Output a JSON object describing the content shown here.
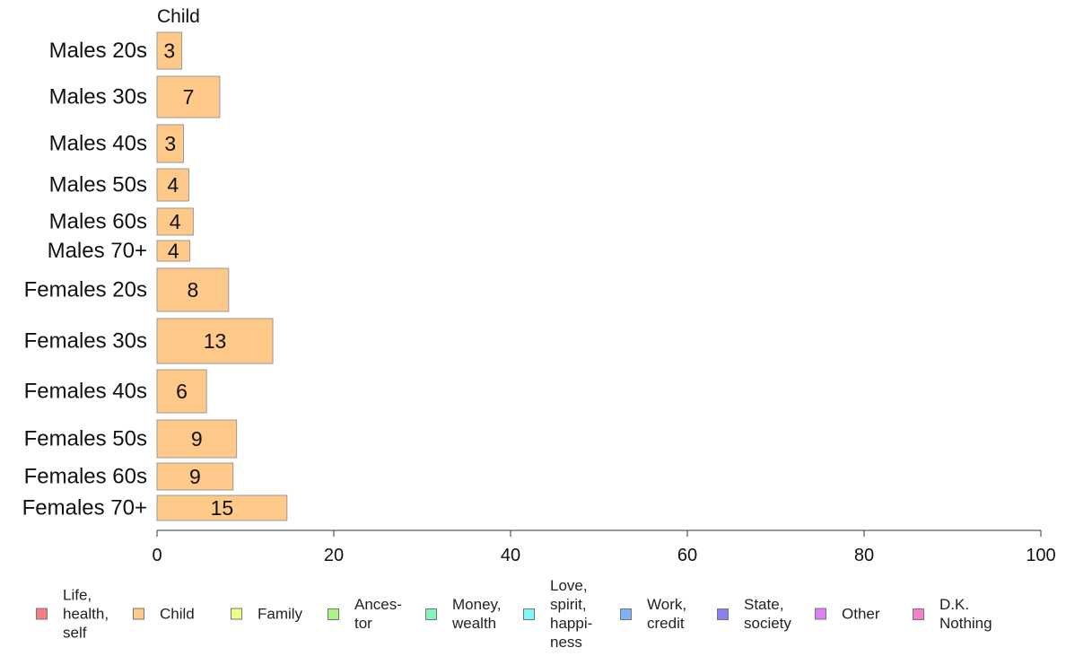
{
  "chart_data": {
    "type": "bar",
    "orientation": "horizontal",
    "title": "Child",
    "categories": [
      "Males 20s",
      "Males 30s",
      "Males 40s",
      "Males 50s",
      "Males 60s",
      "Males 70+",
      "Females 20s",
      "Females 30s",
      "Females 40s",
      "Females 50s",
      "Females 60s",
      "Females 70+"
    ],
    "values": [
      2.8,
      7.1,
      3.0,
      3.6,
      4.1,
      3.7,
      8.1,
      13.1,
      5.6,
      9.0,
      8.6,
      14.7
    ],
    "data_labels": [
      "3",
      "7",
      "3",
      "4",
      "4",
      "4",
      "8",
      "13",
      "6",
      "9",
      "9",
      "15"
    ],
    "bar_color": "#FFC989",
    "bar_border_color": "#999999",
    "xlim": [
      0,
      100
    ],
    "x_ticks": [
      "0",
      "20",
      "40",
      "60",
      "80",
      "100"
    ],
    "xlabel": "",
    "ylabel": "",
    "grid": false,
    "legend_position": "bottom",
    "legend": [
      {
        "label": "Life,\nhealth,\nself",
        "color": "#F57F7F"
      },
      {
        "label": "Child",
        "color": "#FFC989"
      },
      {
        "label": "Family",
        "color": "#EEFF89"
      },
      {
        "label": "Ances-\ntor",
        "color": "#A6F77F"
      },
      {
        "label": "Money,\nwealth",
        "color": "#82F7B5"
      },
      {
        "label": "Love,\nspirit,\nhappi-\nness",
        "color": "#7FF7F7"
      },
      {
        "label": "Work,\ncredit",
        "color": "#7FB2F5"
      },
      {
        "label": "State,\nsociety",
        "color": "#8A7FF5"
      },
      {
        "label": "Other",
        "color": "#DE7FF5"
      },
      {
        "label": "D.K.\nNothing",
        "color": "#F57FCB"
      }
    ]
  }
}
